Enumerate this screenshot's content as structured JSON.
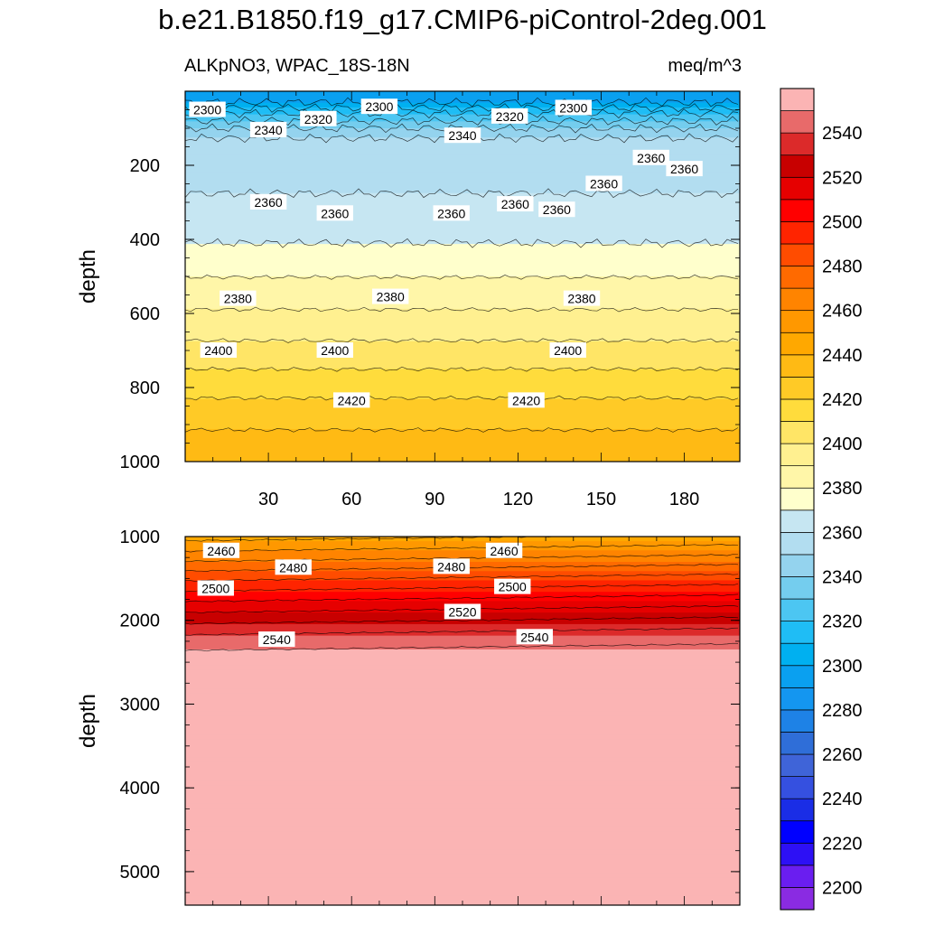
{
  "figure": {
    "title": "b.e21.B1850.f19_g17.CMIP6-piControl-2deg.001",
    "left_label": "ALKpNO3, WPAC_18S-18N",
    "right_label": "meq/m^3"
  },
  "chart_data": [
    {
      "type": "heatmap",
      "panel": "upper",
      "variable": "ALKpNO3",
      "units": "meq/m^3",
      "xlabel": "",
      "ylabel": "depth",
      "xlim": [
        0,
        200
      ],
      "ylim": [
        1000,
        0
      ],
      "x_ticks": [
        30,
        60,
        90,
        120,
        150,
        180
      ],
      "y_ticks": [
        200,
        400,
        600,
        800,
        1000
      ],
      "depth_profile": [
        {
          "depth": 0,
          "value": 2290
        },
        {
          "depth": 30,
          "value": 2300
        },
        {
          "depth": 60,
          "value": 2320
        },
        {
          "depth": 100,
          "value": 2340
        },
        {
          "depth": 140,
          "value": 2355
        },
        {
          "depth": 330,
          "value": 2362
        },
        {
          "depth": 430,
          "value": 2372
        },
        {
          "depth": 520,
          "value": 2382
        },
        {
          "depth": 650,
          "value": 2397
        },
        {
          "depth": 820,
          "value": 2419
        },
        {
          "depth": 1000,
          "value": 2440
        }
      ],
      "contour_labels": [
        {
          "x": 8,
          "depth": 50,
          "text": "2300"
        },
        {
          "x": 70,
          "depth": 42,
          "text": "2300"
        },
        {
          "x": 140,
          "depth": 45,
          "text": "2300"
        },
        {
          "x": 48,
          "depth": 75,
          "text": "2320"
        },
        {
          "x": 117,
          "depth": 68,
          "text": "2320"
        },
        {
          "x": 30,
          "depth": 105,
          "text": "2340"
        },
        {
          "x": 100,
          "depth": 120,
          "text": "2340"
        },
        {
          "x": 30,
          "depth": 300,
          "text": "2360"
        },
        {
          "x": 54,
          "depth": 330,
          "text": "2360"
        },
        {
          "x": 96,
          "depth": 330,
          "text": "2360"
        },
        {
          "x": 119,
          "depth": 305,
          "text": "2360"
        },
        {
          "x": 134,
          "depth": 320,
          "text": "2360"
        },
        {
          "x": 151,
          "depth": 250,
          "text": "2360"
        },
        {
          "x": 168,
          "depth": 180,
          "text": "2360"
        },
        {
          "x": 180,
          "depth": 210,
          "text": "2360"
        },
        {
          "x": 19,
          "depth": 560,
          "text": "2380"
        },
        {
          "x": 74,
          "depth": 555,
          "text": "2380"
        },
        {
          "x": 143,
          "depth": 560,
          "text": "2380"
        },
        {
          "x": 12,
          "depth": 700,
          "text": "2400"
        },
        {
          "x": 54,
          "depth": 700,
          "text": "2400"
        },
        {
          "x": 138,
          "depth": 700,
          "text": "2400"
        },
        {
          "x": 60,
          "depth": 835,
          "text": "2420"
        },
        {
          "x": 123,
          "depth": 835,
          "text": "2420"
        }
      ]
    },
    {
      "type": "heatmap",
      "panel": "lower",
      "variable": "ALKpNO3",
      "units": "meq/m^3",
      "xlabel": "",
      "ylabel": "depth",
      "xlim": [
        0,
        200
      ],
      "ylim": [
        5400,
        1000
      ],
      "y_ticks": [
        1000,
        2000,
        3000,
        4000,
        5000
      ],
      "depth_profile": [
        {
          "depth": 1000,
          "value": 2446
        },
        {
          "depth": 1250,
          "value": 2466
        },
        {
          "depth": 1550,
          "value": 2492
        },
        {
          "depth": 1800,
          "value": 2512
        },
        {
          "depth": 2000,
          "value": 2527
        },
        {
          "depth": 2200,
          "value": 2542
        },
        {
          "depth": 2400,
          "value": 2552
        },
        {
          "depth": 5400,
          "value": 2565
        }
      ],
      "contour_labels": [
        {
          "x": 13,
          "depth": 1170,
          "text": "2460"
        },
        {
          "x": 115,
          "depth": 1170,
          "text": "2460"
        },
        {
          "x": 39,
          "depth": 1370,
          "text": "2480"
        },
        {
          "x": 96,
          "depth": 1360,
          "text": "2480"
        },
        {
          "x": 11,
          "depth": 1620,
          "text": "2500"
        },
        {
          "x": 118,
          "depth": 1600,
          "text": "2500"
        },
        {
          "x": 100,
          "depth": 1900,
          "text": "2520"
        },
        {
          "x": 33,
          "depth": 2230,
          "text": "2540"
        },
        {
          "x": 126,
          "depth": 2200,
          "text": "2540"
        }
      ]
    }
  ],
  "colorbar": {
    "levels": [
      2200,
      2210,
      2220,
      2230,
      2240,
      2250,
      2260,
      2270,
      2280,
      2290,
      2300,
      2310,
      2320,
      2330,
      2340,
      2350,
      2360,
      2370,
      2380,
      2390,
      2400,
      2410,
      2420,
      2430,
      2440,
      2450,
      2460,
      2470,
      2480,
      2490,
      2500,
      2510,
      2520,
      2530,
      2540,
      2550
    ],
    "tick_labels": [
      "2200",
      "2220",
      "2240",
      "2260",
      "2280",
      "2300",
      "2320",
      "2340",
      "2360",
      "2380",
      "2400",
      "2420",
      "2440",
      "2460",
      "2480",
      "2500",
      "2520",
      "2540"
    ],
    "colors": [
      "#8a2be2",
      "#6a1ef0",
      "#2d10f5",
      "#0000ff",
      "#1a2de6",
      "#3550e0",
      "#3f64d8",
      "#2f6ed8",
      "#1e82e6",
      "#1496f0",
      "#0aa0f0",
      "#00b0f0",
      "#1fbdf5",
      "#4cc6f2",
      "#74cdee",
      "#94d3ee",
      "#b2ddf0",
      "#c6e6f2",
      "#ffffcc",
      "#fff6a8",
      "#fff090",
      "#ffe566",
      "#ffdc3c",
      "#ffca26",
      "#ffba14",
      "#ffa800",
      "#ff9800",
      "#ff8400",
      "#ff6a00",
      "#ff4c00",
      "#ff2400",
      "#ff0000",
      "#e60000",
      "#c80000",
      "#dc2a2a",
      "#e86a6a",
      "#fbb4b4"
    ]
  }
}
